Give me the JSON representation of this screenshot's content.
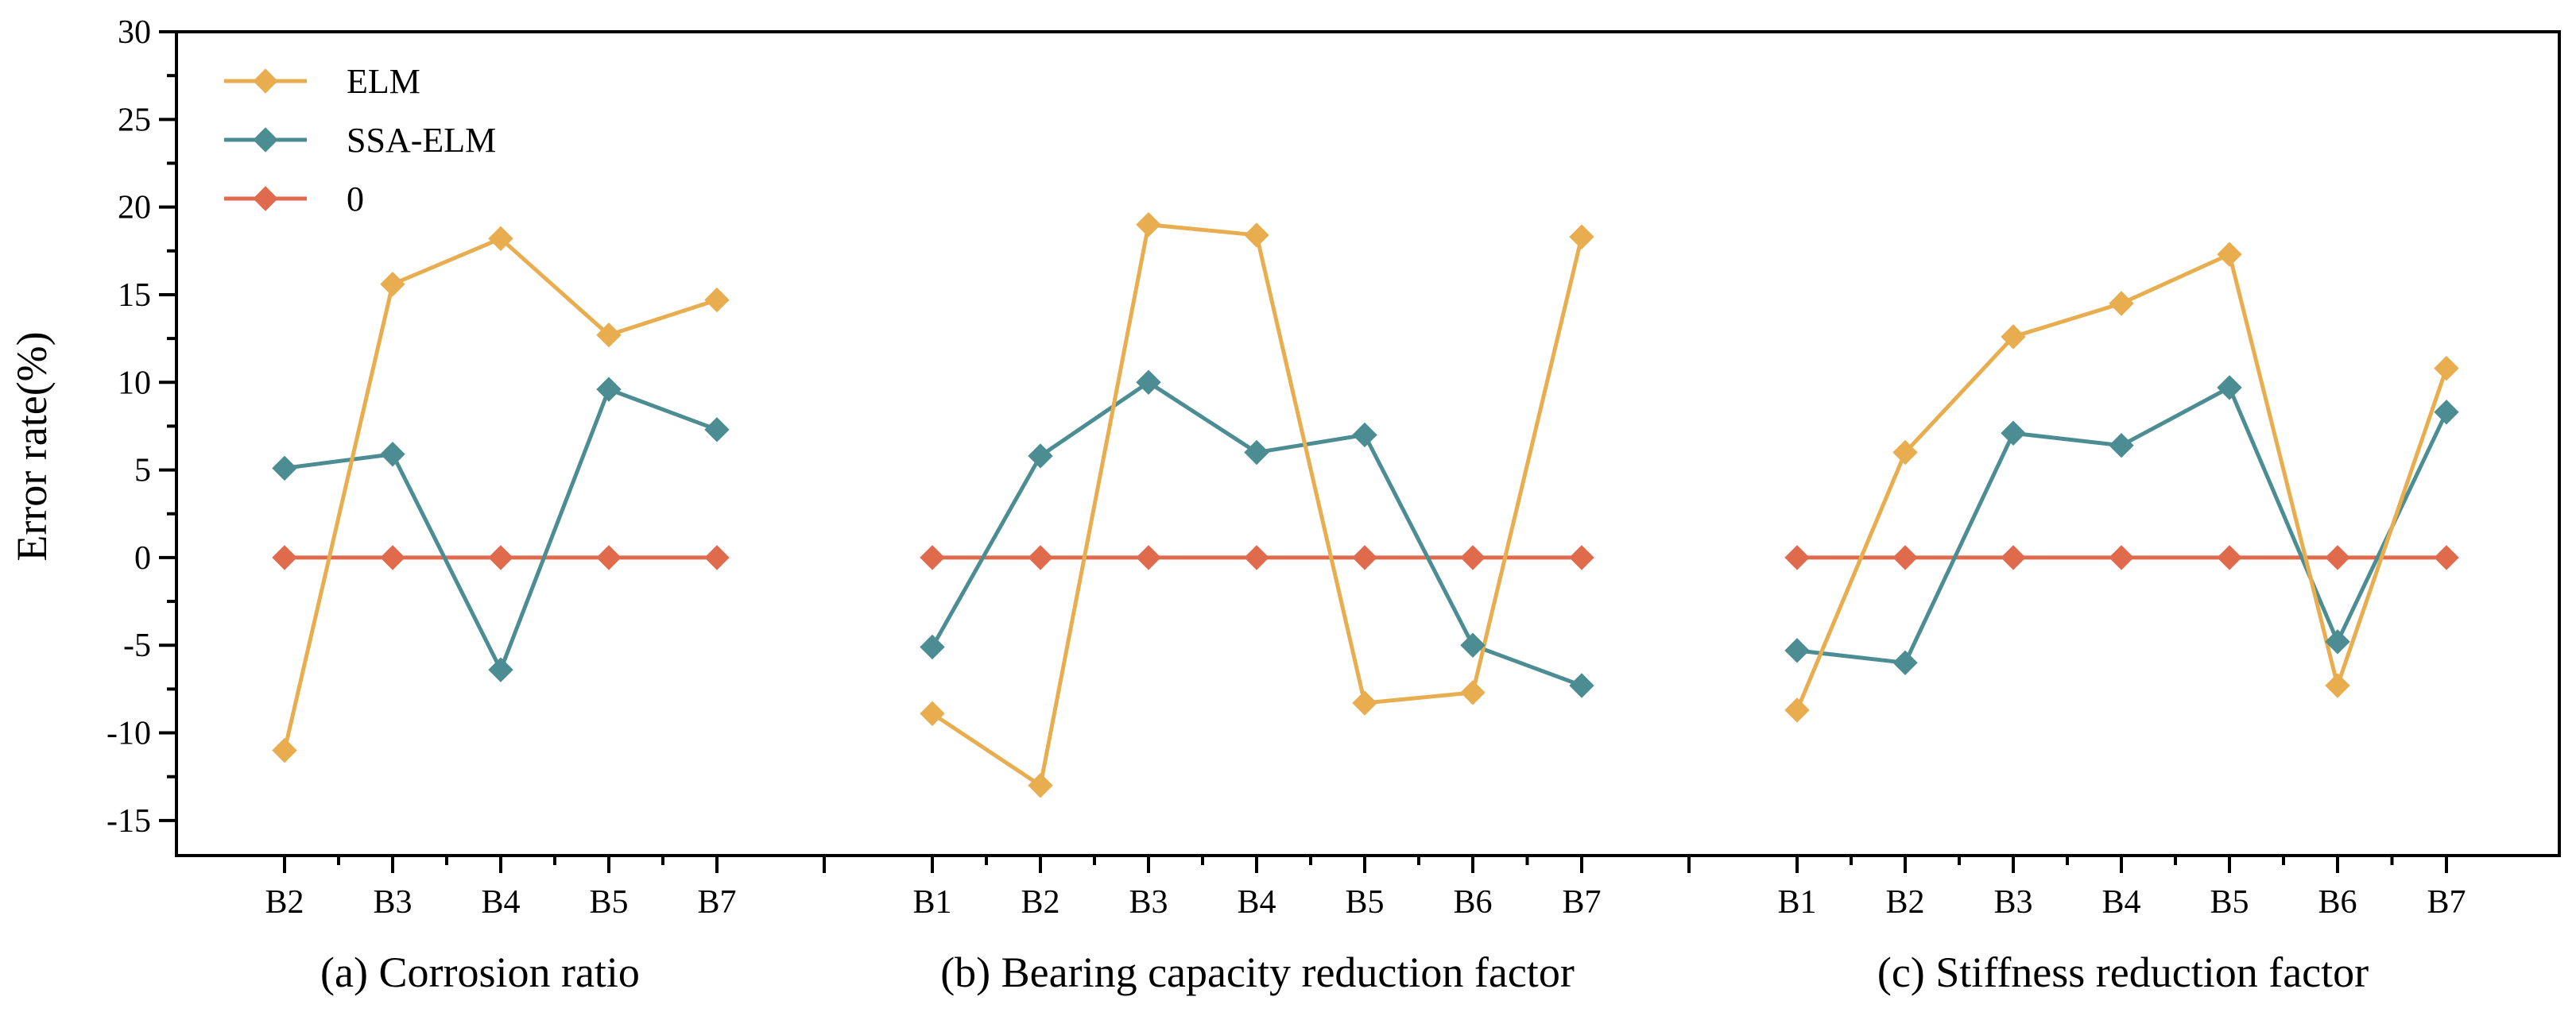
{
  "chart_data": {
    "type": "line",
    "ylabel": "Error rate(%)",
    "ylim": [
      -17,
      30
    ],
    "yticks": [
      30,
      25,
      20,
      15,
      10,
      5,
      0,
      -5,
      -10,
      -15
    ],
    "grid": false,
    "legend_position": "top-left",
    "legend": [
      "ELM",
      "SSA-ELM",
      "0"
    ],
    "series_colors": {
      "ELM": "#E8AD4E",
      "SSA-ELM": "#4C8D93",
      "0": "#E06A4C"
    },
    "groups": [
      {
        "label": "(a) Corrosion ratio",
        "categories": [
          "B2",
          "B3",
          "B4",
          "B5",
          "B7"
        ],
        "series": [
          {
            "name": "ELM",
            "values": [
              -11.0,
              15.6,
              18.2,
              12.7,
              14.7
            ]
          },
          {
            "name": "SSA-ELM",
            "values": [
              5.1,
              5.9,
              -6.4,
              9.6,
              7.3
            ]
          },
          {
            "name": "0",
            "values": [
              0,
              0,
              0,
              0,
              0
            ]
          }
        ]
      },
      {
        "label": "(b) Bearing capacity reduction factor",
        "categories": [
          "B1",
          "B2",
          "B3",
          "B4",
          "B5",
          "B6",
          "B7"
        ],
        "series": [
          {
            "name": "ELM",
            "values": [
              -8.9,
              -13.0,
              19.0,
              18.4,
              -8.3,
              -7.7,
              18.3
            ]
          },
          {
            "name": "SSA-ELM",
            "values": [
              -5.1,
              5.8,
              10.0,
              6.0,
              7.0,
              -5.0,
              -7.3
            ]
          },
          {
            "name": "0",
            "values": [
              0,
              0,
              0,
              0,
              0,
              0,
              0
            ]
          }
        ]
      },
      {
        "label": "(c) Stiffness reduction factor",
        "categories": [
          "B1",
          "B2",
          "B3",
          "B4",
          "B5",
          "B6",
          "B7"
        ],
        "series": [
          {
            "name": "ELM",
            "values": [
              -8.7,
              6.0,
              12.6,
              14.5,
              17.3,
              -7.3,
              10.8
            ]
          },
          {
            "name": "SSA-ELM",
            "values": [
              -5.3,
              -6.0,
              7.1,
              6.4,
              9.7,
              -4.8,
              8.3
            ]
          },
          {
            "name": "0",
            "values": [
              0,
              0,
              0,
              0,
              0,
              0,
              0
            ]
          }
        ]
      }
    ]
  }
}
